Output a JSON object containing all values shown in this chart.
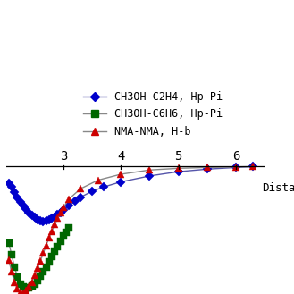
{
  "xlabel": "Distanc",
  "xlim": [
    2.0,
    6.5
  ],
  "ylim": [
    -7.5,
    1.5
  ],
  "xticks": [
    3,
    4,
    5,
    6
  ],
  "background_color": "#ffffff",
  "series": [
    {
      "label": "CH3OH-C2H4, Hp-Pi",
      "marker_color": "#0000cc",
      "line_color": "#5555aa",
      "marker": "D",
      "markersize": 5,
      "x": [
        2.05,
        2.1,
        2.15,
        2.2,
        2.25,
        2.3,
        2.35,
        2.4,
        2.45,
        2.5,
        2.55,
        2.6,
        2.65,
        2.7,
        2.75,
        2.8,
        2.85,
        2.9,
        2.95,
        3.0,
        3.1,
        3.2,
        3.3,
        3.5,
        3.7,
        4.0,
        4.5,
        5.0,
        5.5,
        6.0,
        6.3
      ],
      "y": [
        -1.0,
        -1.2,
        -1.5,
        -1.8,
        -2.1,
        -2.3,
        -2.5,
        -2.7,
        -2.85,
        -3.0,
        -3.15,
        -3.2,
        -3.22,
        -3.2,
        -3.15,
        -3.05,
        -2.95,
        -2.82,
        -2.7,
        -2.55,
        -2.3,
        -2.05,
        -1.8,
        -1.45,
        -1.2,
        -0.9,
        -0.55,
        -0.3,
        -0.15,
        -0.05,
        0.0
      ]
    },
    {
      "label": "CH3OH-C6H6, Hp-Pi",
      "marker_color": "#006600",
      "line_color": "#888888",
      "marker": "s",
      "markersize": 6,
      "x": [
        2.05,
        2.1,
        2.15,
        2.2,
        2.25,
        2.3,
        2.35,
        2.4,
        2.45,
        2.5,
        2.55,
        2.6,
        2.65,
        2.7,
        2.75,
        2.8,
        2.85,
        2.9,
        2.95,
        3.0,
        3.05,
        3.1
      ],
      "y": [
        -4.5,
        -5.2,
        -5.9,
        -6.5,
        -6.9,
        -7.1,
        -7.2,
        -7.15,
        -7.05,
        -6.9,
        -6.7,
        -6.45,
        -6.2,
        -5.9,
        -5.6,
        -5.3,
        -5.0,
        -4.7,
        -4.4,
        -4.1,
        -3.85,
        -3.6
      ]
    },
    {
      "label": "NMA-NMA, H-b",
      "marker_color": "#cc0000",
      "line_color": "#888888",
      "marker": "^",
      "markersize": 6,
      "x": [
        2.05,
        2.1,
        2.15,
        2.2,
        2.25,
        2.3,
        2.35,
        2.4,
        2.45,
        2.5,
        2.55,
        2.6,
        2.65,
        2.7,
        2.75,
        2.8,
        2.85,
        2.9,
        2.95,
        3.0,
        3.1,
        3.3,
        3.6,
        4.0,
        4.5,
        5.0,
        5.5,
        6.0,
        6.3
      ],
      "y": [
        -5.5,
        -6.2,
        -6.8,
        -7.2,
        -7.4,
        -7.45,
        -7.3,
        -7.1,
        -6.8,
        -6.4,
        -6.0,
        -5.55,
        -5.1,
        -4.65,
        -4.2,
        -3.8,
        -3.4,
        -3.05,
        -2.7,
        -2.4,
        -1.9,
        -1.3,
        -0.8,
        -0.45,
        -0.2,
        -0.1,
        -0.05,
        -0.02,
        0.0
      ]
    }
  ]
}
